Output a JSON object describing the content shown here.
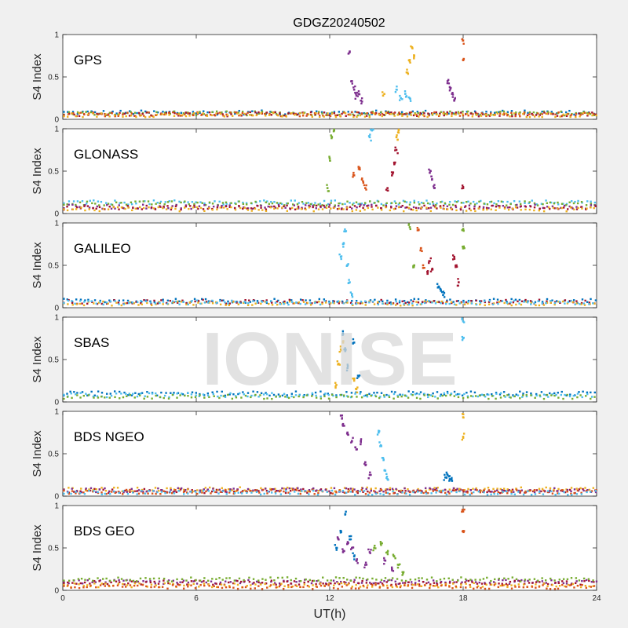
{
  "chart_data": {
    "type": "scatter",
    "title": "GDGZ20240502",
    "xlabel": "UT(h)",
    "ylabel": "S4 Index",
    "xlim": [
      0,
      24
    ],
    "xticks": [
      0,
      6,
      12,
      18,
      24
    ],
    "xtick_labels": [
      "0",
      "6",
      "12",
      "18",
      "24"
    ],
    "ylim": [
      0,
      1
    ],
    "yticks": [
      0,
      0.5,
      1
    ],
    "ytick_labels": [
      "0",
      "0.5",
      "1"
    ],
    "watermark": "IONISE",
    "colors": [
      "#0072BD",
      "#D95319",
      "#EDB120",
      "#7E2F8E",
      "#77AC30",
      "#4DBEEE",
      "#A2142F"
    ],
    "panels": [
      {
        "name": "GPS",
        "baseline": [
          {
            "color": "#0072BD",
            "level": 0.08
          },
          {
            "color": "#77AC30",
            "level": 0.07
          },
          {
            "color": "#A2142F",
            "level": 0.06
          },
          {
            "color": "#D95319",
            "level": 0.06
          },
          {
            "color": "#EDB120",
            "level": 0.05
          }
        ],
        "events": [
          {
            "color": "#7E2F8E",
            "points": [
              [
                12.9,
                0.8
              ],
              [
                13.0,
                0.45
              ],
              [
                13.1,
                0.35
              ],
              [
                13.2,
                0.28
              ],
              [
                13.3,
                0.3
              ],
              [
                13.4,
                0.22
              ]
            ]
          },
          {
            "color": "#EDB120",
            "points": [
              [
                14.4,
                0.28
              ],
              [
                15.5,
                0.55
              ],
              [
                15.6,
                0.7
              ],
              [
                15.7,
                0.85
              ],
              [
                15.8,
                0.75
              ]
            ]
          },
          {
            "color": "#4DBEEE",
            "points": [
              [
                15.0,
                0.35
              ],
              [
                15.2,
                0.25
              ],
              [
                15.4,
                0.3
              ],
              [
                15.6,
                0.25
              ]
            ]
          },
          {
            "color": "#7E2F8E",
            "points": [
              [
                17.3,
                0.45
              ],
              [
                17.4,
                0.38
              ],
              [
                17.5,
                0.3
              ],
              [
                17.6,
                0.22
              ]
            ]
          },
          {
            "color": "#D95319",
            "points": [
              [
                18.0,
                0.93
              ],
              [
                18.0,
                0.7
              ]
            ]
          }
        ]
      },
      {
        "name": "GLONASS",
        "baseline": [
          {
            "color": "#4DBEEE",
            "level": 0.13
          },
          {
            "color": "#77AC30",
            "level": 0.12
          },
          {
            "color": "#7E2F8E",
            "level": 0.08
          },
          {
            "color": "#A2142F",
            "level": 0.07
          },
          {
            "color": "#EDB120",
            "level": 0.05
          }
        ],
        "events": [
          {
            "color": "#77AC30",
            "points": [
              [
                11.9,
                0.3
              ],
              [
                12.0,
                0.65
              ],
              [
                12.1,
                0.9
              ],
              [
                12.2,
                0.98
              ]
            ]
          },
          {
            "color": "#D95319",
            "points": [
              [
                13.1,
                0.45
              ],
              [
                13.3,
                0.55
              ],
              [
                13.5,
                0.38
              ],
              [
                13.6,
                0.3
              ]
            ]
          },
          {
            "color": "#4DBEEE",
            "points": [
              [
                13.8,
                0.9
              ],
              [
                13.9,
                0.98
              ]
            ]
          },
          {
            "color": "#A2142F",
            "points": [
              [
                14.6,
                0.3
              ],
              [
                14.8,
                0.45
              ],
              [
                14.9,
                0.6
              ],
              [
                15.0,
                0.75
              ]
            ]
          },
          {
            "color": "#EDB120",
            "points": [
              [
                15.0,
                0.9
              ],
              [
                15.1,
                0.98
              ]
            ]
          },
          {
            "color": "#7E2F8E",
            "points": [
              [
                16.5,
                0.48
              ],
              [
                16.6,
                0.4
              ],
              [
                16.7,
                0.3
              ]
            ]
          },
          {
            "color": "#A2142F",
            "points": [
              [
                18.0,
                0.3
              ]
            ]
          }
        ]
      },
      {
        "name": "GALILEO",
        "baseline": [
          {
            "color": "#0072BD",
            "level": 0.08
          },
          {
            "color": "#A2142F",
            "level": 0.07
          },
          {
            "color": "#EDB120",
            "level": 0.05
          },
          {
            "color": "#4DBEEE",
            "level": 0.06
          }
        ],
        "events": [
          {
            "color": "#4DBEEE",
            "points": [
              [
                12.5,
                0.6
              ],
              [
                12.6,
                0.75
              ],
              [
                12.7,
                0.9
              ],
              [
                12.8,
                0.5
              ],
              [
                12.9,
                0.3
              ],
              [
                13.0,
                0.15
              ]
            ]
          },
          {
            "color": "#77AC30",
            "points": [
              [
                15.6,
                0.95
              ],
              [
                15.8,
                0.5
              ]
            ]
          },
          {
            "color": "#D95319",
            "points": [
              [
                16.0,
                0.92
              ],
              [
                16.1,
                0.7
              ],
              [
                16.2,
                0.5
              ]
            ]
          },
          {
            "color": "#A2142F",
            "points": [
              [
                16.4,
                0.4
              ],
              [
                16.5,
                0.55
              ],
              [
                16.6,
                0.45
              ],
              [
                17.6,
                0.6
              ],
              [
                17.7,
                0.5
              ],
              [
                17.8,
                0.3
              ]
            ]
          },
          {
            "color": "#0072BD",
            "points": [
              [
                16.9,
                0.25
              ],
              [
                17.0,
                0.2
              ],
              [
                17.1,
                0.15
              ]
            ]
          },
          {
            "color": "#77AC30",
            "points": [
              [
                18.0,
                0.93
              ],
              [
                18.0,
                0.7
              ]
            ]
          }
        ]
      },
      {
        "name": "SBAS",
        "baseline": [
          {
            "color": "#0072BD",
            "level": 0.1
          },
          {
            "color": "#4DBEEE",
            "level": 0.08
          },
          {
            "color": "#77AC30",
            "level": 0.06
          }
        ],
        "events": [
          {
            "color": "#EDB120",
            "points": [
              [
                12.3,
                0.2
              ],
              [
                12.4,
                0.45
              ],
              [
                12.5,
                0.62
              ],
              [
                12.6,
                0.7
              ],
              [
                13.1,
                0.25
              ],
              [
                13.2,
                0.15
              ]
            ]
          },
          {
            "color": "#0072BD",
            "points": [
              [
                12.6,
                0.8
              ],
              [
                12.7,
                0.6
              ],
              [
                12.8,
                0.4
              ],
              [
                13.1,
                0.7
              ],
              [
                13.3,
                0.3
              ]
            ]
          },
          {
            "color": "#4DBEEE",
            "points": [
              [
                18.0,
                0.95
              ],
              [
                18.0,
                0.75
              ]
            ]
          }
        ]
      },
      {
        "name": "BDS NGEO",
        "baseline": [
          {
            "color": "#A2142F",
            "level": 0.06
          },
          {
            "color": "#EDB120",
            "level": 0.08
          },
          {
            "color": "#7E2F8E",
            "level": 0.07
          },
          {
            "color": "#D95319",
            "level": 0.05
          },
          {
            "color": "#4DBEEE",
            "level": 0.04
          }
        ],
        "events": [
          {
            "color": "#7E2F8E",
            "points": [
              [
                12.5,
                0.95
              ],
              [
                12.6,
                0.85
              ],
              [
                12.8,
                0.75
              ],
              [
                13.0,
                0.65
              ],
              [
                13.2,
                0.55
              ],
              [
                13.4,
                0.65
              ],
              [
                13.6,
                0.4
              ],
              [
                13.8,
                0.25
              ]
            ]
          },
          {
            "color": "#4DBEEE",
            "points": [
              [
                14.2,
                0.75
              ],
              [
                14.3,
                0.6
              ],
              [
                14.4,
                0.45
              ],
              [
                14.5,
                0.3
              ],
              [
                14.6,
                0.2
              ]
            ]
          },
          {
            "color": "#0072BD",
            "points": [
              [
                17.2,
                0.22
              ],
              [
                17.3,
                0.25
              ],
              [
                17.4,
                0.2
              ],
              [
                17.5,
                0.18
              ]
            ]
          },
          {
            "color": "#EDB120",
            "points": [
              [
                18.0,
                0.93
              ],
              [
                18.0,
                0.7
              ]
            ]
          }
        ]
      },
      {
        "name": "BDS GEO",
        "baseline": [
          {
            "color": "#7E2F8E",
            "level": 0.1
          },
          {
            "color": "#A2142F",
            "level": 0.09
          },
          {
            "color": "#EDB120",
            "level": 0.06
          },
          {
            "color": "#D95319",
            "level": 0.04
          },
          {
            "color": "#77AC30",
            "level": 0.13
          }
        ],
        "events": [
          {
            "color": "#0072BD",
            "points": [
              [
                12.3,
                0.5
              ],
              [
                12.5,
                0.7
              ],
              [
                12.7,
                0.9
              ],
              [
                12.9,
                0.6
              ],
              [
                13.1,
                0.4
              ]
            ]
          },
          {
            "color": "#7E2F8E",
            "points": [
              [
                12.4,
                0.6
              ],
              [
                12.6,
                0.45
              ],
              [
                12.8,
                0.55
              ],
              [
                13.0,
                0.5
              ],
              [
                13.2,
                0.35
              ],
              [
                13.6,
                0.3
              ],
              [
                13.8,
                0.45
              ],
              [
                14.5,
                0.35
              ],
              [
                14.8,
                0.25
              ]
            ]
          },
          {
            "color": "#77AC30",
            "points": [
              [
                14.0,
                0.5
              ],
              [
                14.3,
                0.55
              ],
              [
                14.6,
                0.45
              ],
              [
                14.9,
                0.4
              ],
              [
                15.1,
                0.3
              ],
              [
                15.3,
                0.2
              ]
            ]
          },
          {
            "color": "#D95319",
            "points": [
              [
                18.0,
                0.93
              ],
              [
                18.0,
                0.7
              ]
            ]
          }
        ]
      }
    ]
  }
}
